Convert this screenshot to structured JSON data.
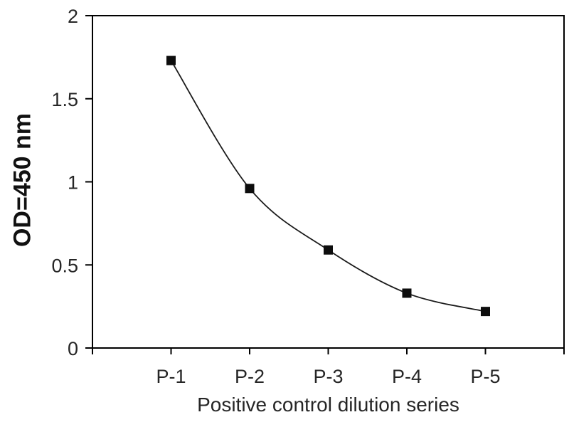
{
  "chart_data": {
    "type": "line",
    "categories": [
      "P-1",
      "P-2",
      "P-3",
      "P-4",
      "P-5"
    ],
    "values": [
      1.73,
      0.96,
      0.59,
      0.33,
      0.22
    ],
    "title": "",
    "xlabel": "Positive control dilution series",
    "ylabel": "OD=450 nm",
    "yticks": [
      0,
      0.5,
      1,
      1.5,
      2
    ],
    "ytick_labels": [
      "0",
      "0.5",
      "1",
      "1.5",
      "2"
    ],
    "ylim": [
      0,
      2
    ],
    "x_positions_note": "categories evenly spaced, one interval of padding at each end of x-axis",
    "marker": "filled-square",
    "smooth_line": true,
    "grid": false,
    "legend": false,
    "colors": {
      "line": "#1a1a1a",
      "marker": "#0d0d0d",
      "axis": "#000000",
      "text": "#262626",
      "background": "#ffffff"
    }
  }
}
